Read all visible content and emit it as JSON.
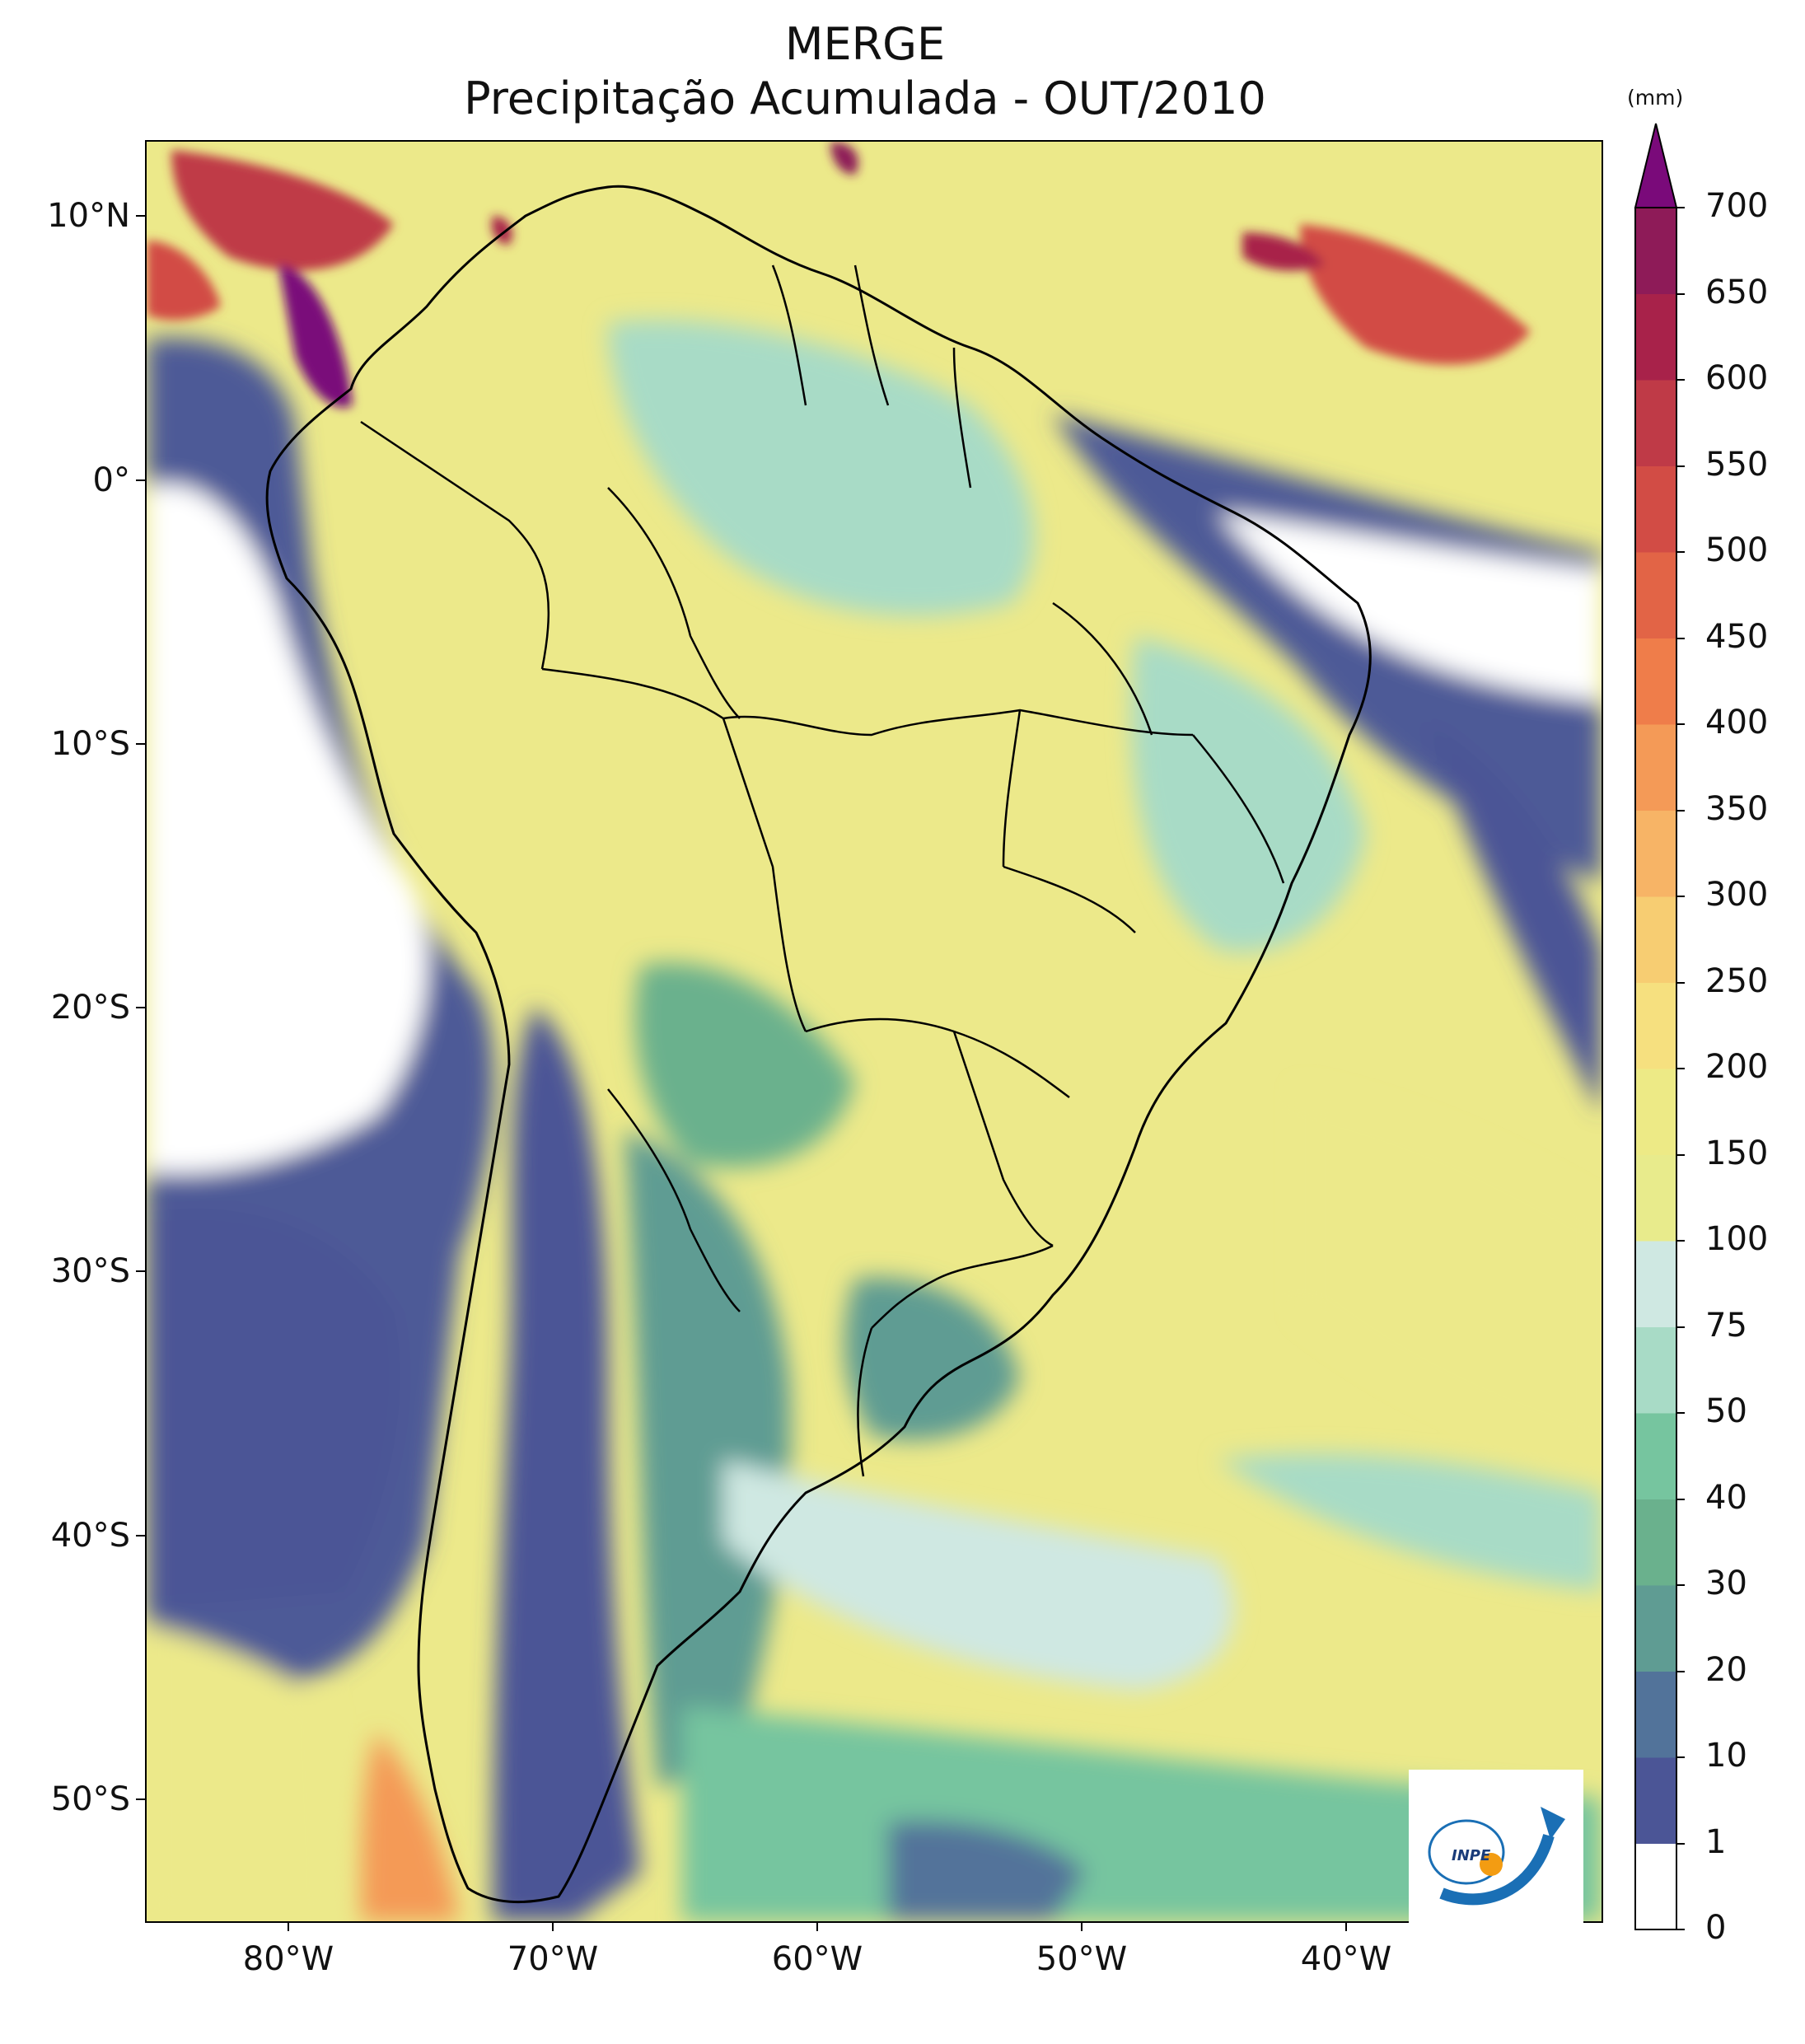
{
  "title": {
    "line1": "MERGE",
    "line2": "Precipitação Acumulada - OUT/2010"
  },
  "map": {
    "lat_labels": [
      "10°N",
      "0°",
      "10°S",
      "20°S",
      "30°S",
      "40°S",
      "50°S"
    ],
    "lon_labels": [
      "80°W",
      "70°W",
      "60°W",
      "50°W",
      "40°W"
    ],
    "lat_values": [
      10,
      0,
      -10,
      -20,
      -30,
      -40,
      -50
    ],
    "lon_values": [
      -80,
      -70,
      -60,
      -50,
      -40
    ],
    "extent": {
      "lon_min": -85,
      "lon_max": -30,
      "lat_min": -56,
      "lat_max": 13
    }
  },
  "colorbar": {
    "unit": "(mm)",
    "ticks": [
      "0",
      "1",
      "10",
      "20",
      "30",
      "40",
      "50",
      "75",
      "100",
      "150",
      "200",
      "250",
      "300",
      "350",
      "400",
      "450",
      "500",
      "550",
      "600",
      "650",
      "700"
    ],
    "colors": [
      "#ffffff",
      "#4b5596",
      "#52739a",
      "#5f9c93",
      "#6ab18d",
      "#76c59f",
      "#a8dbc6",
      "#cfe8e2",
      "#e8eb8c",
      "#edea86",
      "#f6e07f",
      "#f7cd72",
      "#f7b466",
      "#f49a57",
      "#ef7d4a",
      "#e26446",
      "#d24c45",
      "#bf3a47",
      "#a8224a",
      "#8e1b58"
    ],
    "extend_color": "#7a0a7a"
  },
  "logo": {
    "text": "INPE"
  }
}
